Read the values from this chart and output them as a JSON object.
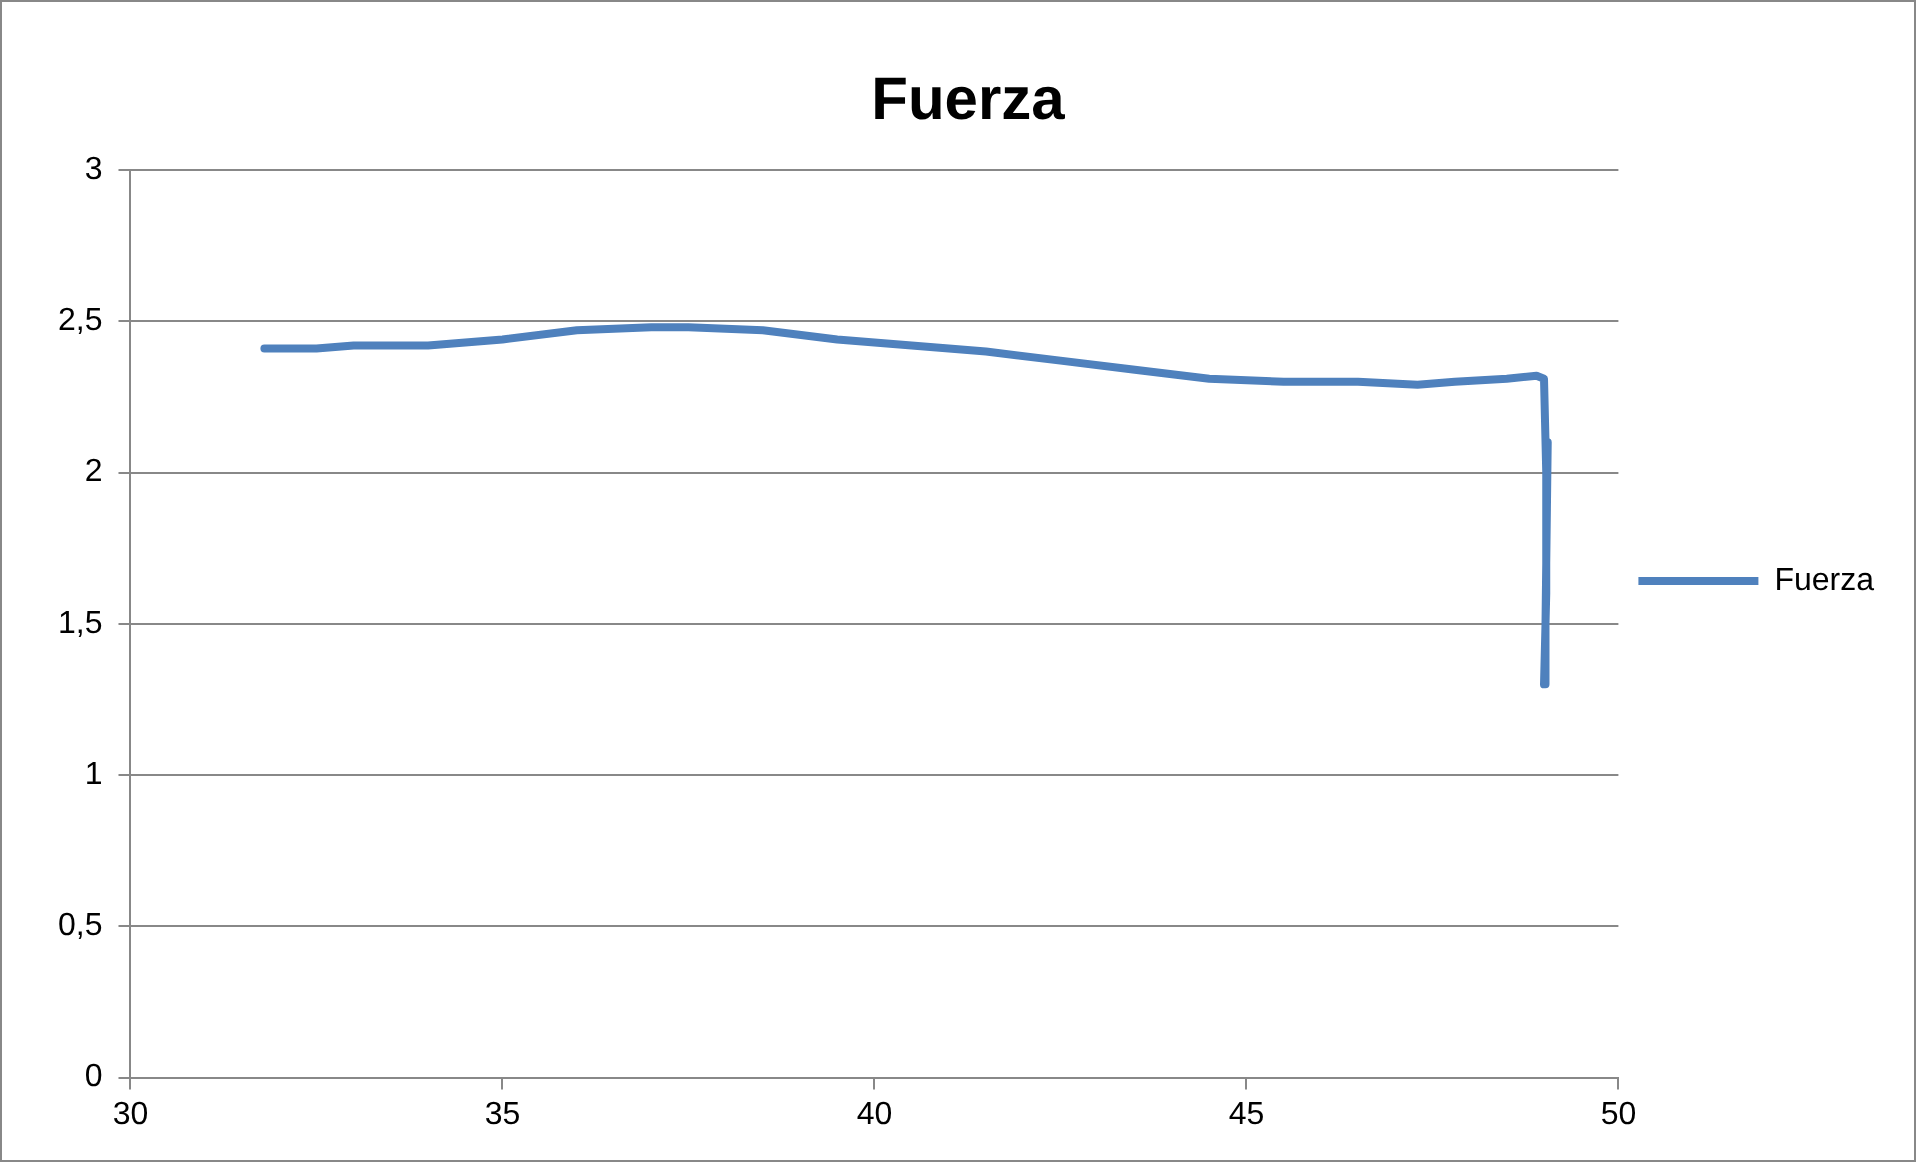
{
  "chart_data": {
    "type": "line",
    "title": "Fuerza",
    "x": [
      31.8,
      32.5,
      33,
      34,
      35,
      36,
      37,
      37.5,
      38.5,
      39.5,
      40.5,
      41.5,
      42.5,
      43.5,
      44.5,
      45.5,
      46.5,
      47.3,
      47.8,
      48.5,
      48.9,
      49,
      49.03,
      49.03,
      49,
      49.02,
      49.05
    ],
    "series": [
      {
        "name": "Fuerza",
        "color": "#4f81bd",
        "values": [
          2.41,
          2.41,
          2.42,
          2.42,
          2.44,
          2.47,
          2.48,
          2.48,
          2.47,
          2.44,
          2.42,
          2.4,
          2.37,
          2.34,
          2.31,
          2.3,
          2.3,
          2.29,
          2.3,
          2.31,
          2.32,
          2.31,
          2.0,
          1.6,
          1.3,
          1.5,
          2.1
        ]
      }
    ],
    "xlim": [
      30,
      50
    ],
    "xticks": [
      30,
      35,
      40,
      45,
      50
    ],
    "ylim": [
      0,
      3
    ],
    "yticks": [
      0,
      {
        "value": 0.5,
        "label": "0,5"
      },
      1,
      {
        "value": 1.5,
        "label": "1,5"
      },
      2,
      {
        "value": 2.5,
        "label": "2,5"
      },
      3
    ],
    "grid": "y",
    "legend": "right",
    "marker": "none",
    "line_style": "solid"
  }
}
